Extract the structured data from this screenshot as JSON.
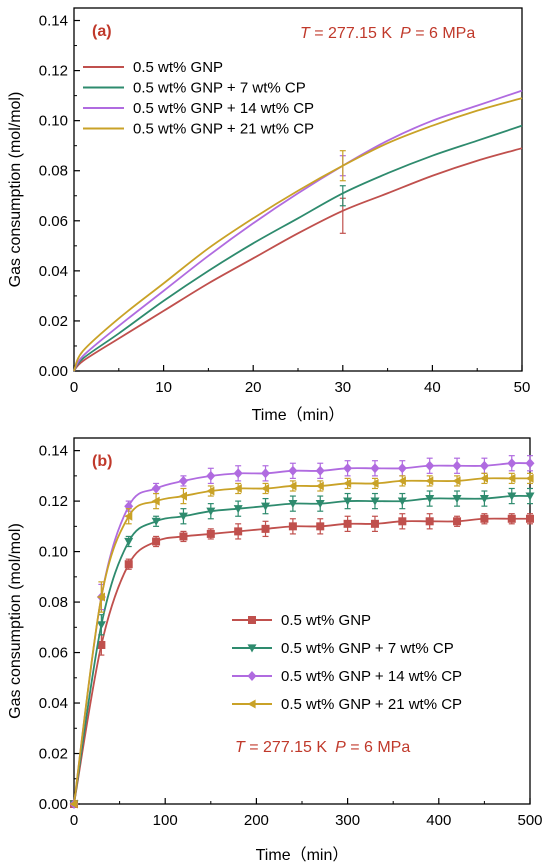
{
  "chart_data": [
    {
      "type": "line",
      "panel_label": "(a)",
      "conditions": {
        "t_label": "T",
        "t_value": " = 277.15 K",
        "p_label": "P",
        "p_value": " = 6 MPa"
      },
      "xlabel": "Time（min）",
      "ylabel": "Gas consumption (mol/mol)",
      "xlim": [
        0,
        50
      ],
      "ylim": [
        0,
        0.145
      ],
      "xticks": [
        "0",
        "10",
        "20",
        "30",
        "40",
        "50"
      ],
      "yticks": [
        "0.00",
        "0.02",
        "0.04",
        "0.06",
        "0.08",
        "0.10",
        "0.12",
        "0.14"
      ],
      "legend_position": "top-left",
      "series": [
        {
          "name": "0.5 wt% GNP",
          "color": "#c0504d",
          "x": [
            0,
            1,
            5,
            10,
            15,
            20,
            25,
            30,
            35,
            40,
            45,
            50
          ],
          "y": [
            0,
            0.004,
            0.013,
            0.024,
            0.035,
            0.045,
            0.055,
            0.064,
            0.071,
            0.078,
            0.084,
            0.089
          ],
          "error_bar": {
            "x": 30,
            "y": 0.062,
            "err": 0.007
          }
        },
        {
          "name": "0.5 wt% GNP + 7 wt% CP",
          "color": "#2e8b6e",
          "x": [
            0,
            1,
            5,
            10,
            15,
            20,
            25,
            30,
            35,
            40,
            45,
            50
          ],
          "y": [
            0,
            0.005,
            0.015,
            0.028,
            0.04,
            0.051,
            0.061,
            0.071,
            0.079,
            0.086,
            0.092,
            0.098
          ],
          "error_bar": {
            "x": 30,
            "y": 0.07,
            "err": 0.004
          }
        },
        {
          "name": "0.5 wt% GNP + 14 wt% CP",
          "color": "#b06be0",
          "x": [
            0,
            1,
            5,
            10,
            15,
            20,
            25,
            30,
            35,
            40,
            45,
            50
          ],
          "y": [
            0,
            0.006,
            0.018,
            0.032,
            0.046,
            0.059,
            0.071,
            0.082,
            0.092,
            0.1,
            0.106,
            0.112
          ],
          "error_bar": {
            "x": 30,
            "y": 0.082,
            "err": 0.004
          }
        },
        {
          "name": "0.5 wt% GNP + 21 wt% CP",
          "color": "#c9a227",
          "x": [
            0,
            1,
            5,
            10,
            15,
            20,
            25,
            30,
            35,
            40,
            45,
            50
          ],
          "y": [
            0,
            0.008,
            0.021,
            0.035,
            0.049,
            0.061,
            0.072,
            0.082,
            0.091,
            0.098,
            0.104,
            0.109
          ],
          "error_bar": {
            "x": 30,
            "y": 0.082,
            "err": 0.006
          }
        }
      ]
    },
    {
      "type": "line",
      "panel_label": "(b)",
      "conditions": {
        "t_label": "T",
        "t_value": " = 277.15 K",
        "p_label": "P",
        "p_value": " = 6 MPa"
      },
      "xlabel": "Time（min）",
      "ylabel": "Gas consumption (mol/mol)",
      "xlim": [
        0,
        500
      ],
      "ylim": [
        0,
        0.145
      ],
      "xticks": [
        "0",
        "100",
        "200",
        "300",
        "400",
        "500"
      ],
      "yticks": [
        "0.00",
        "0.02",
        "0.04",
        "0.06",
        "0.08",
        "0.10",
        "0.12",
        "0.14"
      ],
      "legend_position": "center-right",
      "series": [
        {
          "name": "0.5 wt% GNP",
          "color": "#c0504d",
          "marker": "square",
          "x": [
            0,
            30,
            60,
            90,
            120,
            150,
            180,
            210,
            240,
            270,
            300,
            330,
            360,
            390,
            420,
            450,
            480,
            500
          ],
          "y": [
            0,
            0.063,
            0.095,
            0.104,
            0.106,
            0.107,
            0.108,
            0.109,
            0.11,
            0.11,
            0.111,
            0.111,
            0.112,
            0.112,
            0.112,
            0.113,
            0.113,
            0.113
          ],
          "err": [
            0,
            0.004,
            0.002,
            0.002,
            0.002,
            0.002,
            0.003,
            0.003,
            0.003,
            0.003,
            0.003,
            0.003,
            0.003,
            0.003,
            0.002,
            0.002,
            0.002,
            0.002
          ]
        },
        {
          "name": "0.5 wt% GNP + 7 wt% CP",
          "color": "#2e8b6e",
          "marker": "triangle-down",
          "x": [
            0,
            30,
            60,
            90,
            120,
            150,
            180,
            210,
            240,
            270,
            300,
            330,
            360,
            390,
            420,
            450,
            480,
            500
          ],
          "y": [
            0,
            0.071,
            0.104,
            0.112,
            0.114,
            0.116,
            0.117,
            0.118,
            0.119,
            0.119,
            0.12,
            0.12,
            0.12,
            0.121,
            0.121,
            0.121,
            0.122,
            0.122
          ],
          "err": [
            0,
            0.004,
            0.002,
            0.002,
            0.003,
            0.003,
            0.003,
            0.003,
            0.003,
            0.003,
            0.003,
            0.003,
            0.003,
            0.003,
            0.003,
            0.003,
            0.003,
            0.003
          ]
        },
        {
          "name": "0.5 wt% GNP + 14 wt% CP",
          "color": "#b06be0",
          "marker": "diamond",
          "x": [
            0,
            30,
            60,
            90,
            120,
            150,
            180,
            210,
            240,
            270,
            300,
            330,
            360,
            390,
            420,
            450,
            480,
            500
          ],
          "y": [
            0,
            0.082,
            0.118,
            0.125,
            0.128,
            0.13,
            0.131,
            0.131,
            0.132,
            0.132,
            0.133,
            0.133,
            0.133,
            0.134,
            0.134,
            0.134,
            0.135,
            0.135
          ],
          "err": [
            0,
            0.005,
            0.002,
            0.002,
            0.002,
            0.003,
            0.003,
            0.003,
            0.003,
            0.003,
            0.003,
            0.003,
            0.003,
            0.003,
            0.003,
            0.003,
            0.003,
            0.003
          ]
        },
        {
          "name": "0.5 wt% GNP + 21 wt% CP",
          "color": "#c9a227",
          "marker": "triangle-left",
          "x": [
            0,
            30,
            60,
            90,
            120,
            150,
            180,
            210,
            240,
            270,
            300,
            330,
            360,
            390,
            420,
            450,
            480,
            500
          ],
          "y": [
            0,
            0.082,
            0.114,
            0.12,
            0.122,
            0.124,
            0.125,
            0.125,
            0.126,
            0.126,
            0.127,
            0.127,
            0.128,
            0.128,
            0.128,
            0.129,
            0.129,
            0.129
          ],
          "err": [
            0,
            0.006,
            0.003,
            0.003,
            0.003,
            0.002,
            0.002,
            0.002,
            0.002,
            0.002,
            0.002,
            0.002,
            0.002,
            0.002,
            0.002,
            0.002,
            0.002,
            0.002
          ]
        }
      ]
    }
  ]
}
